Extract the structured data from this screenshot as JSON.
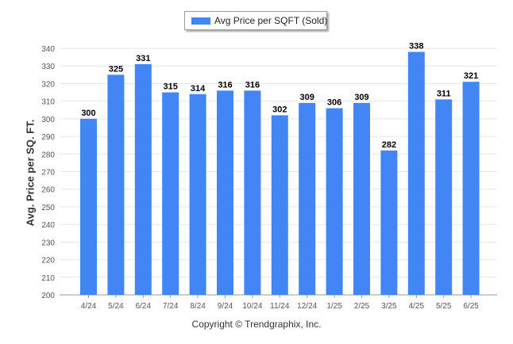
{
  "legend": {
    "label": "Avg Price per SQFT (Sold)"
  },
  "copyright": "Copyright © Trendgraphix, Inc.",
  "colors": {
    "bar": "#4285f4",
    "grid": "#e6e6e6",
    "axis": "#9a9a9a",
    "tick_text": "#555555",
    "value_text": "#000000"
  },
  "chart_data": {
    "type": "bar",
    "categories": [
      "4/24",
      "5/24",
      "6/24",
      "7/24",
      "8/24",
      "9/24",
      "10/24",
      "11/24",
      "12/24",
      "1/25",
      "2/25",
      "3/25",
      "4/25",
      "5/25",
      "6/25"
    ],
    "series": [
      {
        "name": "Avg Price per SQFT (Sold)",
        "values": [
          300,
          325,
          331,
          315,
          314,
          316,
          316,
          302,
          309,
          306,
          309,
          282,
          338,
          311,
          321
        ]
      }
    ],
    "title": "",
    "xlabel": "",
    "ylabel": "Avg. Price per SQ. FT.",
    "ylim": [
      200,
      340
    ],
    "yticks": [
      200,
      210,
      220,
      230,
      240,
      250,
      260,
      270,
      280,
      290,
      300,
      310,
      320,
      330,
      340
    ],
    "grid": true,
    "legend_position": "top-center",
    "data_labels": true
  }
}
